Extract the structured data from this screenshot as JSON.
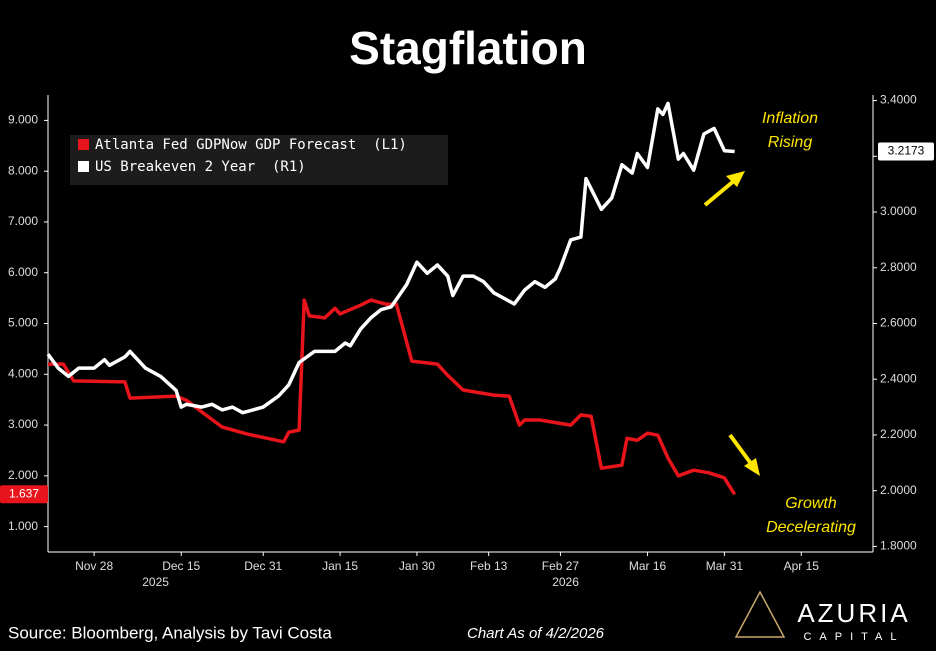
{
  "chart_data": {
    "type": "line",
    "title": "Stagflation",
    "xlim": [
      "2025-11-19",
      "2026-04-29"
    ],
    "xticks": [
      {
        "value": "2025-11-28",
        "label": "Nov 28"
      },
      {
        "value": "2025-12-15",
        "label": "Dec 15"
      },
      {
        "value": "2025-12-31",
        "label": "Dec 31"
      },
      {
        "value": "2026-01-15",
        "label": "Jan 15"
      },
      {
        "value": "2026-01-30",
        "label": "Jan 30"
      },
      {
        "value": "2026-02-13",
        "label": "Feb 13"
      },
      {
        "value": "2026-02-27",
        "label": "Feb 27"
      },
      {
        "value": "2026-03-16",
        "label": "Mar 16"
      },
      {
        "value": "2026-03-31",
        "label": "Mar 31"
      },
      {
        "value": "2026-04-15",
        "label": "Apr 15"
      }
    ],
    "x_group_labels": [
      {
        "value": "2025-12-10",
        "label": "2025"
      },
      {
        "value": "2026-02-28",
        "label": "2026"
      }
    ],
    "ylim": [
      0.5,
      9.5
    ],
    "yticks": [
      {
        "value": 1,
        "label": "1.000"
      },
      {
        "value": 2,
        "label": "2.000"
      },
      {
        "value": 3,
        "label": "3.000"
      },
      {
        "value": 4,
        "label": "4.000"
      },
      {
        "value": 5,
        "label": "5.000"
      },
      {
        "value": 6,
        "label": "6.000"
      },
      {
        "value": 7,
        "label": "7.000"
      },
      {
        "value": 8,
        "label": "8.000"
      },
      {
        "value": 9,
        "label": "9.000"
      }
    ],
    "y2lim": [
      1.78,
      3.42
    ],
    "y2ticks": [
      {
        "value": 1.8,
        "label": "1.8000"
      },
      {
        "value": 2.0,
        "label": "2.0000"
      },
      {
        "value": 2.2,
        "label": "2.2000"
      },
      {
        "value": 2.4,
        "label": "2.4000"
      },
      {
        "value": 2.6,
        "label": "2.6000"
      },
      {
        "value": 2.8,
        "label": "2.8000"
      },
      {
        "value": 3.0,
        "label": "3.0000"
      },
      {
        "value": 3.2,
        "label": "3.2000"
      },
      {
        "value": 3.4,
        "label": "3.4000"
      }
    ],
    "series": [
      {
        "name": "Atlanta Fed GDPNow GDP Forecast  (L1)",
        "color": "#e8141b",
        "axis": "y",
        "x": [
          "2025-11-19",
          "2025-11-22",
          "2025-11-24",
          "2025-12-04",
          "2025-12-05",
          "2025-12-14",
          "2025-12-16",
          "2025-12-19",
          "2025-12-23",
          "2025-12-28",
          "2026-01-04",
          "2026-01-05",
          "2026-01-07",
          "2026-01-08",
          "2026-01-09",
          "2026-01-12",
          "2026-01-14",
          "2026-01-15",
          "2026-01-19",
          "2026-01-21",
          "2026-01-24",
          "2026-01-26",
          "2026-01-29",
          "2026-02-03",
          "2026-02-05",
          "2026-02-08",
          "2026-02-14",
          "2026-02-17",
          "2026-02-19",
          "2026-02-20",
          "2026-02-23",
          "2026-03-01",
          "2026-03-03",
          "2026-03-05",
          "2026-03-07",
          "2026-03-11",
          "2026-03-12",
          "2026-03-14",
          "2026-03-16",
          "2026-03-18",
          "2026-03-20",
          "2026-03-22",
          "2026-03-25",
          "2026-03-28",
          "2026-03-31",
          "2026-04-02"
        ],
        "values": [
          4.2,
          4.2,
          3.87,
          3.85,
          3.53,
          3.57,
          3.49,
          3.26,
          2.96,
          2.82,
          2.67,
          2.86,
          2.9,
          5.46,
          5.15,
          5.11,
          5.3,
          5.19,
          5.36,
          5.46,
          5.38,
          5.38,
          4.26,
          4.2,
          3.98,
          3.69,
          3.59,
          3.57,
          3.0,
          3.1,
          3.1,
          3.0,
          3.2,
          3.17,
          2.15,
          2.21,
          2.74,
          2.7,
          2.84,
          2.8,
          2.35,
          2.0,
          2.11,
          2.06,
          1.96,
          1.637
        ]
      },
      {
        "name": "US Breakeven 2 Year  (R1)",
        "color": "#ffffff",
        "axis": "y2",
        "x": [
          "2025-11-19",
          "2025-11-21",
          "2025-11-23",
          "2025-11-25",
          "2025-11-28",
          "2025-11-30",
          "2025-12-01",
          "2025-12-04",
          "2025-12-05",
          "2025-12-08",
          "2025-12-11",
          "2025-12-14",
          "2025-12-15",
          "2025-12-16",
          "2025-12-19",
          "2025-12-21",
          "2025-12-23",
          "2025-12-25",
          "2025-12-27",
          "2025-12-29",
          "2025-12-31",
          "2026-01-03",
          "2026-01-05",
          "2026-01-07",
          "2026-01-10",
          "2026-01-11",
          "2026-01-14",
          "2026-01-16",
          "2026-01-17",
          "2026-01-19",
          "2026-01-21",
          "2026-01-23",
          "2026-01-25",
          "2026-01-28",
          "2026-01-30",
          "2026-02-01",
          "2026-02-03",
          "2026-02-05",
          "2026-02-06",
          "2026-02-08",
          "2026-02-10",
          "2026-02-12",
          "2026-02-14",
          "2026-02-16",
          "2026-02-18",
          "2026-02-20",
          "2026-02-22",
          "2026-02-24",
          "2026-02-26",
          "2026-02-27",
          "2026-03-01",
          "2026-03-03",
          "2026-03-04",
          "2026-03-07",
          "2026-03-09",
          "2026-03-11",
          "2026-03-13",
          "2026-03-14",
          "2026-03-16",
          "2026-03-18",
          "2026-03-19",
          "2026-03-20",
          "2026-03-22",
          "2026-03-23",
          "2026-03-25",
          "2026-03-27",
          "2026-03-29",
          "2026-03-31",
          "2026-04-02"
        ],
        "values": [
          2.49,
          2.44,
          2.41,
          2.44,
          2.44,
          2.47,
          2.45,
          2.48,
          2.5,
          2.44,
          2.41,
          2.36,
          2.3,
          2.31,
          2.3,
          2.31,
          2.29,
          2.3,
          2.28,
          2.29,
          2.3,
          2.34,
          2.38,
          2.46,
          2.5,
          2.5,
          2.5,
          2.53,
          2.52,
          2.58,
          2.62,
          2.65,
          2.66,
          2.74,
          2.82,
          2.78,
          2.81,
          2.77,
          2.7,
          2.77,
          2.77,
          2.75,
          2.71,
          2.69,
          2.67,
          2.72,
          2.75,
          2.73,
          2.76,
          2.8,
          2.9,
          2.91,
          3.12,
          3.01,
          3.05,
          3.17,
          3.14,
          3.21,
          3.16,
          3.37,
          3.35,
          3.39,
          3.19,
          3.21,
          3.15,
          3.28,
          3.3,
          3.22,
          3.2173
        ]
      }
    ],
    "annotations": {
      "inflation": [
        "Inflation",
        "Rising"
      ],
      "growth": [
        "Growth",
        "Decelerating"
      ]
    },
    "source": "Source: Bloomberg, Analysis by Tavi Costa",
    "as_of": "Chart As of 4/2/2026",
    "logo": {
      "name": "AZURIA",
      "sub": "CAPITAL"
    }
  }
}
